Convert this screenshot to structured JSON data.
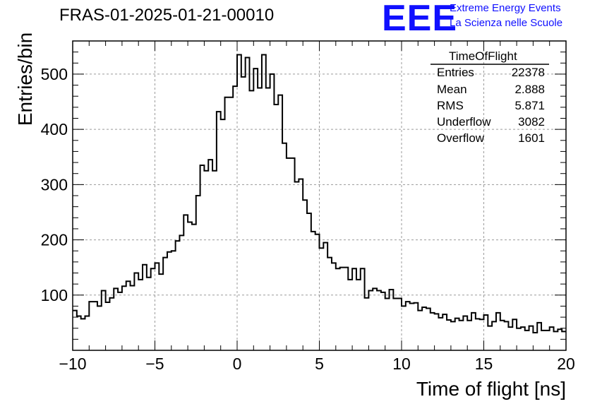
{
  "header": {
    "title": "FRAS-01-2025-01-21-00010",
    "logo_text": "EEE",
    "logo_line1": "Extreme Energy Events",
    "logo_line2": "La Scienza nelle Scuole"
  },
  "stats": {
    "title": "TimeOfFlight",
    "rows": [
      {
        "key": "Entries",
        "value": "22378"
      },
      {
        "key": "Mean",
        "value": "2.888"
      },
      {
        "key": "RMS",
        "value": "5.871"
      },
      {
        "key": "Underflow",
        "value": "3082"
      },
      {
        "key": "Overflow",
        "value": "1601"
      }
    ]
  },
  "colors": {
    "logo": "#1010ff",
    "line": "#000000",
    "grid": "#9a9a9a"
  },
  "chart_data": {
    "type": "histogram",
    "title": "FRAS-01-2025-01-21-00010",
    "xlabel": "Time of flight [ns]",
    "ylabel": "Entries/bin",
    "xlim": [
      -10,
      20
    ],
    "ylim": [
      0,
      560
    ],
    "grid": true,
    "bin_width": 0.25,
    "x_ticks": [
      -10,
      -5,
      0,
      5,
      10,
      15,
      20
    ],
    "x_tick_labels": [
      "−10",
      "−5",
      "0",
      "5",
      "10",
      "15",
      "20"
    ],
    "y_ticks": [
      100,
      200,
      300,
      400,
      500
    ],
    "y_tick_labels": [
      "100",
      "200",
      "300",
      "400",
      "500"
    ],
    "values": [
      72,
      62,
      57,
      62,
      88,
      88,
      80,
      108,
      87,
      95,
      112,
      105,
      116,
      125,
      117,
      140,
      128,
      155,
      132,
      148,
      158,
      138,
      168,
      178,
      180,
      198,
      208,
      245,
      232,
      228,
      280,
      335,
      325,
      345,
      325,
      432,
      418,
      458,
      458,
      478,
      535,
      495,
      530,
      470,
      510,
      475,
      535,
      475,
      500,
      445,
      462,
      375,
      348,
      348,
      305,
      310,
      272,
      248,
      215,
      210,
      185,
      195,
      168,
      158,
      148,
      150,
      150,
      128,
      148,
      128,
      148,
      95,
      108,
      112,
      108,
      105,
      94,
      110,
      94,
      94,
      80,
      88,
      85,
      86,
      72,
      78,
      76,
      68,
      66,
      59,
      65,
      55,
      52,
      58,
      54,
      62,
      54,
      68,
      57,
      56,
      64,
      44,
      52,
      68,
      54,
      52,
      42,
      56,
      40,
      42,
      36,
      44,
      32,
      50,
      36,
      36,
      42,
      34,
      38,
      34
    ]
  },
  "axes": {
    "xlabel": "Time of flight [ns]",
    "ylabel": "Entries/bin"
  }
}
